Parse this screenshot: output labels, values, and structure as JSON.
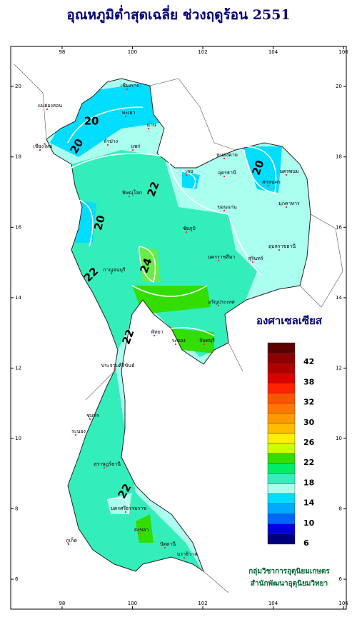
{
  "title": "อุณหภูมิต่ำสุดเฉลี่ย ช่วงฤดูร้อน 2551",
  "map": {
    "xlim": [
      96.54,
      106.08
    ],
    "ylim": [
      5.15,
      21.14
    ],
    "xticks": [
      98,
      100,
      102,
      104,
      106
    ],
    "yticks": [
      6,
      8,
      10,
      12,
      14,
      16,
      18,
      20
    ]
  },
  "contour_labels": [
    20,
    20,
    20,
    20,
    22,
    22,
    24,
    22,
    22
  ],
  "places": [
    "เชียงราย",
    "แม่ฮ่องสอน",
    "พะเยา",
    "เชียงใหม่",
    "น่าน",
    "ลำปาง",
    "แพร่",
    "หนองคาย",
    "อุดรธานี",
    "นครพนม",
    "เลย",
    "สกลนคร",
    "มุกดาหาร",
    "พิษณุโลก",
    "ขอนแก่น",
    "ชัยภูมิ",
    "นครราชสีมา",
    "อุบลราชธานี",
    "สุรินทร์",
    "กาญจนบุรี",
    "อรัญประเทศ",
    "พัทยา",
    "ระยอง",
    "จันทบุรี",
    "ประจวบคีรีขันธ์",
    "ชุมพร",
    "ระนอง",
    "สุราษฎร์ธานี",
    "นครศรีธรรมราช",
    "ภูเก็ต",
    "สงขลา",
    "ปัตตานี",
    "นราธิวาส"
  ],
  "legend": {
    "title": "องศาเซลเซียส",
    "colors": [
      "#5a0000",
      "#8b0000",
      "#b00000",
      "#dd0000",
      "#ff2200",
      "#ff5500",
      "#ff7700",
      "#ff9900",
      "#ffbb00",
      "#ffee00",
      "#ccff00",
      "#33dd00",
      "#00ee66",
      "#33eebb",
      "#aaffee",
      "#00ddff",
      "#00aaff",
      "#0066ff",
      "#0000dd",
      "#000080"
    ],
    "labels": [
      42,
      38,
      32,
      30,
      26,
      22,
      18,
      14,
      10,
      6
    ]
  },
  "credit": [
    "กลุ่มวิชาการอุตุนิยมเกษตร",
    "สำนักพัฒนาอุตุนิยมวิทยา"
  ]
}
